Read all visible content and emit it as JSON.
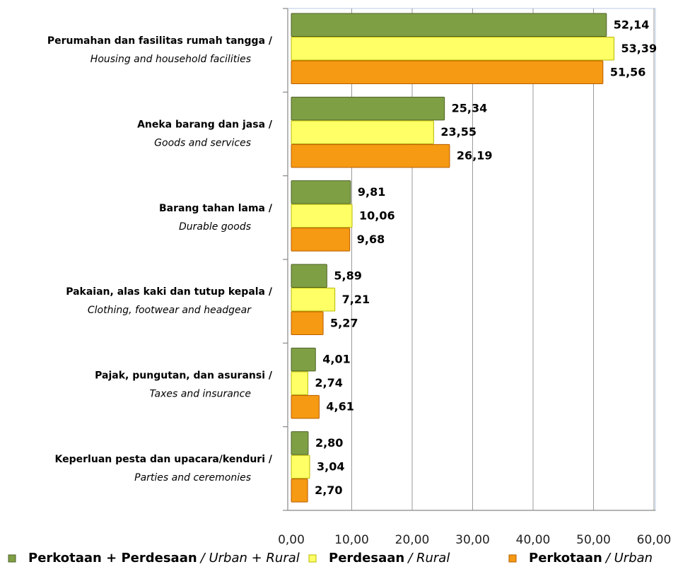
{
  "chart_data": {
    "type": "hbar",
    "categories": [
      "Perumahan dan fasilitas rumah tangga /",
      "Aneka barang dan jasa /",
      "Barang tahan lama /",
      "Pakaian, alas kaki dan tutup kepala /",
      "Pajak, pungutan, dan asuransi /",
      "Keperluan pesta dan upacara/kenduri /"
    ],
    "categories_en": [
      "Housing and household facilities",
      "Goods and services",
      "Durable goods",
      "Clothing, footwear and headgear",
      "Taxes and insurance",
      "Parties and ceremonies"
    ],
    "series": [
      {
        "name": "Perkotaan + Perdesaan",
        "name_en": "/ Urban + Rural",
        "color": "#7f9f45",
        "stroke": "#4f6228",
        "values": [
          52.14,
          25.34,
          9.81,
          5.89,
          4.01,
          2.8
        ],
        "value_labels": [
          "52,14",
          "25,34",
          "9,81",
          "5,89",
          "4,01",
          "2,80"
        ]
      },
      {
        "name": "Perdesaan",
        "name_en": "/ Rural",
        "color": "#ffff66",
        "stroke": "#b8b800",
        "values": [
          53.39,
          23.55,
          10.06,
          7.21,
          2.74,
          3.04
        ],
        "value_labels": [
          "53,39",
          "23,55",
          "10,06",
          "7,21",
          "2,74",
          "3,04"
        ]
      },
      {
        "name": "Perkotaan",
        "name_en": "/ Urban",
        "color": "#f59a12",
        "stroke": "#b85c00",
        "values": [
          51.56,
          26.19,
          9.68,
          5.27,
          4.61,
          2.7
        ],
        "value_labels": [
          "51,56",
          "26,19",
          "9,68",
          "5,27",
          "4,61",
          "2,70"
        ]
      }
    ],
    "xlim": [
      0,
      60
    ],
    "xticks": [
      {
        "value": 0,
        "label": "0,00"
      },
      {
        "value": 10,
        "label": "10,00"
      },
      {
        "value": 20,
        "label": "20,00"
      },
      {
        "value": 30,
        "label": "30,00"
      },
      {
        "value": 40,
        "label": "40,00"
      },
      {
        "value": 50,
        "label": "50,00"
      },
      {
        "value": 60,
        "label": "60,00"
      }
    ],
    "grid": true
  }
}
